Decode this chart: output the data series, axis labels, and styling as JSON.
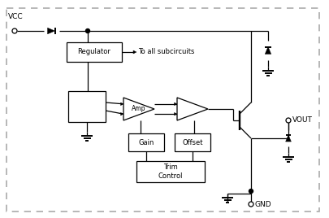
{
  "bg_color": "#ffffff",
  "border_color": "#888888",
  "line_color": "#000000",
  "vcc_label": "VCC",
  "vout_label": "VOUT",
  "gnd_label": "GND",
  "regulator_label": "Regulator",
  "amp_label": "Amp",
  "gain_label": "Gain",
  "offset_label": "Offset",
  "trim_label": "Trim\nControl",
  "subcircuits_label": "To all subcircuits"
}
